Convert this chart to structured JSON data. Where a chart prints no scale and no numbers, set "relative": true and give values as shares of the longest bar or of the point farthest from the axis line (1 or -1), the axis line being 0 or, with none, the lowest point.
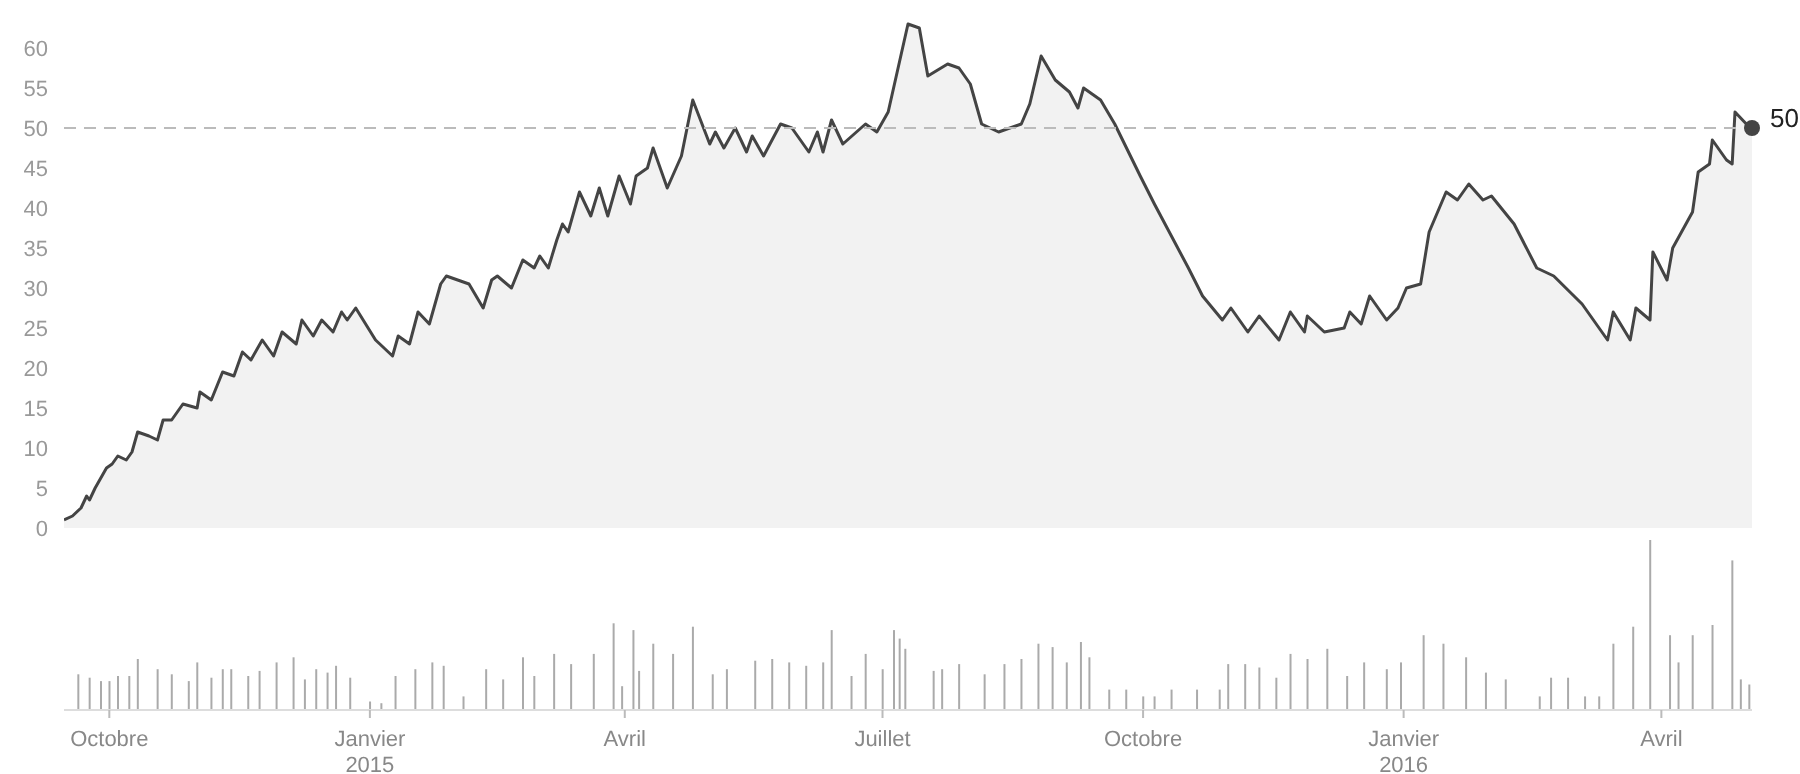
{
  "chart_data": [
    {
      "type": "area",
      "tick_labels": "y",
      "xlim": [
        "2014-09-15",
        "2016-05-03"
      ],
      "ylim": [
        0,
        65
      ],
      "yticks": [
        0,
        5,
        10,
        15,
        20,
        25,
        30,
        35,
        40,
        45,
        50,
        55,
        60
      ],
      "x": [
        "2014-09-15",
        "2014-09-18",
        "2014-09-21",
        "2014-09-23",
        "2014-09-24",
        "2014-09-26",
        "2014-09-30",
        "2014-10-02",
        "2014-10-04",
        "2014-10-07",
        "2014-10-09",
        "2014-10-11",
        "2014-10-15",
        "2014-10-18",
        "2014-10-20",
        "2014-10-23",
        "2014-10-27",
        "2014-11-01",
        "2014-11-02",
        "2014-11-06",
        "2014-11-10",
        "2014-11-14",
        "2014-11-17",
        "2014-11-20",
        "2014-11-24",
        "2014-11-28",
        "2014-12-01",
        "2014-12-06",
        "2014-12-08",
        "2014-12-12",
        "2014-12-15",
        "2014-12-19",
        "2014-12-22",
        "2014-12-24",
        "2014-12-27",
        "2015-01-03",
        "2015-01-09",
        "2015-01-11",
        "2015-01-15",
        "2015-01-18",
        "2015-01-22",
        "2015-01-26",
        "2015-01-28",
        "2015-02-05",
        "2015-02-10",
        "2015-02-13",
        "2015-02-15",
        "2015-02-20",
        "2015-02-24",
        "2015-02-28",
        "2015-03-02",
        "2015-03-05",
        "2015-03-08",
        "2015-03-10",
        "2015-03-12",
        "2015-03-16",
        "2015-03-20",
        "2015-03-23",
        "2015-03-26",
        "2015-03-30",
        "2015-04-03",
        "2015-04-05",
        "2015-04-09",
        "2015-04-11",
        "2015-04-16",
        "2015-04-21",
        "2015-04-25",
        "2015-05-01",
        "2015-05-03",
        "2015-05-06",
        "2015-05-10",
        "2015-05-14",
        "2015-05-16",
        "2015-05-20",
        "2015-05-26",
        "2015-05-30",
        "2015-06-05",
        "2015-06-08",
        "2015-06-10",
        "2015-06-13",
        "2015-06-17",
        "2015-06-25",
        "2015-06-29",
        "2015-07-03",
        "2015-07-10",
        "2015-07-14",
        "2015-07-17",
        "2015-07-24",
        "2015-07-28",
        "2015-08-01",
        "2015-08-05",
        "2015-08-11",
        "2015-08-19",
        "2015-08-22",
        "2015-08-26",
        "2015-08-31",
        "2015-09-05",
        "2015-09-08",
        "2015-09-10",
        "2015-09-16",
        "2015-09-21",
        "2015-09-30",
        "2015-10-05",
        "2015-10-11",
        "2015-10-17",
        "2015-10-22",
        "2015-10-29",
        "2015-11-01",
        "2015-11-07",
        "2015-11-11",
        "2015-11-18",
        "2015-11-22",
        "2015-11-27",
        "2015-11-28",
        "2015-12-04",
        "2015-12-11",
        "2015-12-13",
        "2015-12-17",
        "2015-12-20",
        "2015-12-26",
        "2015-12-30",
        "2016-01-02",
        "2016-01-07",
        "2016-01-10",
        "2016-01-16",
        "2016-01-20",
        "2016-01-24",
        "2016-01-29",
        "2016-02-01",
        "2016-02-09",
        "2016-02-17",
        "2016-02-23",
        "2016-03-04",
        "2016-03-13",
        "2016-03-15",
        "2016-03-21",
        "2016-03-23",
        "2016-03-28",
        "2016-03-29",
        "2016-04-03",
        "2016-04-05",
        "2016-04-12",
        "2016-04-14",
        "2016-04-18",
        "2016-04-19",
        "2016-04-24",
        "2016-04-26",
        "2016-04-27",
        "2016-05-01",
        "2016-05-03"
      ],
      "series": [
        {
          "color": "#444444",
          "values": [
            1,
            1.5,
            2.5,
            4,
            3.5,
            5,
            7.5,
            8,
            9,
            8.5,
            9.5,
            12,
            11.5,
            11,
            13.5,
            13.5,
            15.5,
            15,
            17,
            16,
            19.5,
            19,
            22,
            21,
            23.5,
            21.5,
            24.5,
            23,
            26,
            24,
            26,
            24.5,
            27,
            26,
            27.5,
            23.5,
            21.5,
            24,
            23,
            27,
            25.5,
            30.5,
            31.5,
            30.5,
            27.5,
            31,
            31.5,
            30,
            33.5,
            32.5,
            34,
            32.5,
            36,
            38,
            37,
            42,
            39,
            42.5,
            39,
            44,
            40.5,
            44,
            45,
            47.5,
            42.5,
            46.5,
            53.5,
            48,
            49.5,
            47.5,
            50,
            47,
            49,
            46.5,
            50.5,
            50,
            47,
            49.5,
            47,
            51,
            48,
            50.5,
            49.5,
            52,
            63,
            62.5,
            56.5,
            58,
            57.5,
            55.5,
            50.5,
            49.5,
            50.5,
            53,
            59,
            56,
            54.5,
            52.5,
            55,
            53.5,
            50.5,
            44,
            40.5,
            36.5,
            32.5,
            29,
            26,
            27.5,
            24.5,
            26.5,
            23.5,
            27,
            24.5,
            26.5,
            24.5,
            25,
            27,
            25.5,
            29,
            26,
            27.5,
            30,
            30.5,
            37,
            42,
            41,
            43,
            41,
            41.5,
            38,
            32.5,
            31.5,
            28,
            23.5,
            27,
            23.5,
            27.5,
            26,
            34.5,
            31,
            35,
            39.5,
            44.5,
            45.5,
            48.5,
            46,
            45.5,
            52,
            50.5,
            50
          ]
        }
      ],
      "ref_lines": [
        {
          "axis": "y",
          "value": 50,
          "color": "#bbbbbb",
          "line_style": "dashed"
        }
      ],
      "annotations": [
        {
          "text": "50",
          "x": "2016-05-03",
          "y": 50
        }
      ]
    },
    {
      "type": "bar",
      "relative": true,
      "tick_labels": "x",
      "color": "#aaaaaa",
      "xlim": [
        "2014-09-15",
        "2016-05-03"
      ],
      "xticks": [
        {
          "value": "2014-10-01",
          "label": "Octobre"
        },
        {
          "value": "2015-01-01",
          "label": "Janvier\n2015"
        },
        {
          "value": "2015-04-01",
          "label": "Avril"
        },
        {
          "value": "2015-07-01",
          "label": "Juillet"
        },
        {
          "value": "2015-10-01",
          "label": "Octobre"
        },
        {
          "value": "2016-01-01",
          "label": "Janvier\n2016"
        },
        {
          "value": "2016-04-01",
          "label": "Avril"
        }
      ],
      "x": [
        "2014-09-20",
        "2014-09-24",
        "2014-09-28",
        "2014-10-01",
        "2014-10-04",
        "2014-10-08",
        "2014-10-11",
        "2014-10-18",
        "2014-10-23",
        "2014-10-29",
        "2014-11-01",
        "2014-11-06",
        "2014-11-10",
        "2014-11-13",
        "2014-11-19",
        "2014-11-23",
        "2014-11-29",
        "2014-12-05",
        "2014-12-09",
        "2014-12-13",
        "2014-12-17",
        "2014-12-20",
        "2014-12-25",
        "2015-01-01",
        "2015-01-05",
        "2015-01-10",
        "2015-01-17",
        "2015-01-23",
        "2015-01-27",
        "2015-02-03",
        "2015-02-11",
        "2015-02-17",
        "2015-02-24",
        "2015-02-28",
        "2015-03-07",
        "2015-03-13",
        "2015-03-21",
        "2015-03-28",
        "2015-03-31",
        "2015-04-04",
        "2015-04-06",
        "2015-04-11",
        "2015-04-18",
        "2015-04-25",
        "2015-05-02",
        "2015-05-07",
        "2015-05-17",
        "2015-05-23",
        "2015-05-29",
        "2015-06-04",
        "2015-06-10",
        "2015-06-13",
        "2015-06-20",
        "2015-06-25",
        "2015-07-01",
        "2015-07-05",
        "2015-07-07",
        "2015-07-09",
        "2015-07-19",
        "2015-07-22",
        "2015-07-28",
        "2015-08-06",
        "2015-08-13",
        "2015-08-19",
        "2015-08-25",
        "2015-08-30",
        "2015-09-04",
        "2015-09-09",
        "2015-09-12",
        "2015-09-19",
        "2015-09-25",
        "2015-10-01",
        "2015-10-05",
        "2015-10-11",
        "2015-10-20",
        "2015-10-28",
        "2015-10-31",
        "2015-11-06",
        "2015-11-11",
        "2015-11-17",
        "2015-11-22",
        "2015-11-28",
        "2015-12-05",
        "2015-12-12",
        "2015-12-18",
        "2015-12-26",
        "2015-12-31",
        "2016-01-08",
        "2016-01-15",
        "2016-01-23",
        "2016-01-30",
        "2016-02-06",
        "2016-02-18",
        "2016-02-22",
        "2016-02-28",
        "2016-03-05",
        "2016-03-10",
        "2016-03-15",
        "2016-03-22",
        "2016-03-28",
        "2016-04-04",
        "2016-04-07",
        "2016-04-12",
        "2016-04-19",
        "2016-04-26",
        "2016-04-29",
        "2016-05-02"
      ],
      "values": [
        0.21,
        0.19,
        0.17,
        0.17,
        0.2,
        0.2,
        0.3,
        0.24,
        0.21,
        0.17,
        0.28,
        0.19,
        0.24,
        0.24,
        0.2,
        0.23,
        0.28,
        0.31,
        0.18,
        0.24,
        0.22,
        0.26,
        0.19,
        0.05,
        0.04,
        0.2,
        0.24,
        0.28,
        0.26,
        0.08,
        0.24,
        0.18,
        0.31,
        0.2,
        0.33,
        0.27,
        0.33,
        0.51,
        0.14,
        0.47,
        0.23,
        0.39,
        0.33,
        0.49,
        0.21,
        0.24,
        0.29,
        0.3,
        0.28,
        0.26,
        0.28,
        0.47,
        0.2,
        0.33,
        0.24,
        0.47,
        0.42,
        0.36,
        0.23,
        0.24,
        0.27,
        0.21,
        0.27,
        0.3,
        0.39,
        0.37,
        0.28,
        0.4,
        0.31,
        0.12,
        0.12,
        0.08,
        0.08,
        0.12,
        0.12,
        0.12,
        0.27,
        0.27,
        0.25,
        0.19,
        0.33,
        0.3,
        0.36,
        0.2,
        0.28,
        0.24,
        0.28,
        0.44,
        0.39,
        0.31,
        0.22,
        0.18,
        0.08,
        0.19,
        0.19,
        0.08,
        0.08,
        0.39,
        0.49,
        1,
        0.44,
        0.28,
        0.44,
        0.5,
        0.88,
        0.18,
        0.15
      ]
    }
  ]
}
